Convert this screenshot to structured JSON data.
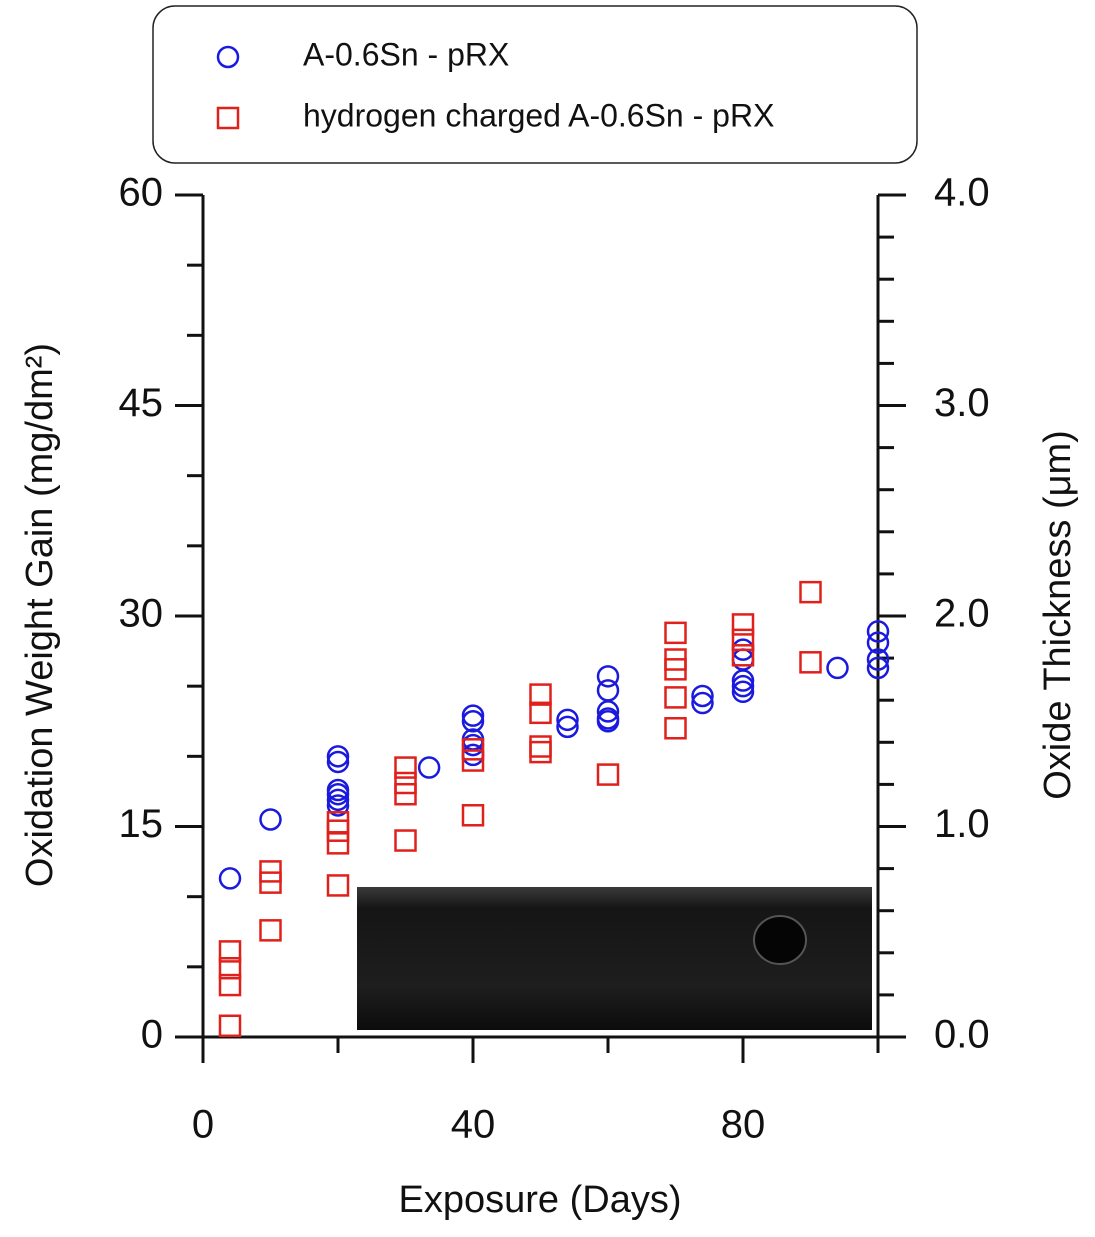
{
  "chart_data": {
    "type": "scatter",
    "x_label": "Exposure (Days)",
    "y_label": "Oxidation Weight Gain (mg/dm²)",
    "y2_label": "Oxide Thickness (μm)",
    "xlim": [
      0,
      100
    ],
    "xticks": [
      0,
      40,
      80
    ],
    "xminorticks": [
      20,
      60,
      100
    ],
    "ylim": [
      0,
      60
    ],
    "yticks": [
      0,
      15,
      30,
      45,
      60
    ],
    "yminorticks": [
      5,
      10,
      20,
      25,
      35,
      40,
      50,
      55
    ],
    "y2lim": [
      0,
      4
    ],
    "y2ticks": [
      {
        "value": 0,
        "label": "0.0"
      },
      {
        "value": 1,
        "label": "1.0"
      },
      {
        "value": 2,
        "label": "2.0"
      },
      {
        "value": 3,
        "label": "3.0"
      },
      {
        "value": 4,
        "label": "4.0"
      }
    ],
    "y2minorticks": [
      0.2,
      0.4,
      0.6,
      0.8,
      1.2,
      1.4,
      1.6,
      1.8,
      2.2,
      2.4,
      2.6,
      2.8,
      3.2,
      3.4,
      3.6,
      3.8
    ],
    "legend_position": "top",
    "series": [
      {
        "name": "A-0.6Sn - pRX",
        "color": "#1a1adf",
        "marker": "circle",
        "x": [
          4,
          10,
          20,
          20,
          20,
          20,
          20,
          20,
          33.5,
          40,
          40,
          40,
          40,
          40,
          54,
          54,
          60,
          60,
          60,
          60,
          60,
          74,
          74,
          80,
          80,
          80,
          80,
          80,
          94,
          100,
          100,
          100,
          100
        ],
        "values": [
          11.3,
          15.5,
          20.0,
          19.6,
          17.6,
          17.3,
          16.9,
          16.5,
          19.2,
          22.9,
          22.5,
          21.2,
          20.8,
          20.1,
          22.6,
          22.1,
          25.7,
          24.7,
          23.2,
          22.7,
          22.5,
          24.3,
          23.8,
          27.6,
          26.9,
          25.4,
          25.0,
          24.6,
          26.3,
          28.9,
          28.1,
          26.9,
          26.3
        ]
      },
      {
        "name": "hydrogen charged A-0.6Sn - pRX",
        "color": "#e0201b",
        "marker": "square",
        "x": [
          4,
          4,
          4,
          4,
          10,
          10,
          10,
          20,
          20,
          20,
          20,
          30,
          30,
          30,
          30,
          40,
          40,
          40,
          50,
          50,
          50,
          50,
          60,
          70,
          70,
          70,
          70,
          70,
          80,
          80,
          80,
          90,
          90
        ],
        "values": [
          6.1,
          4.9,
          3.7,
          0.8,
          11.8,
          11.0,
          7.6,
          15.3,
          14.7,
          13.8,
          10.8,
          19.2,
          18.1,
          17.3,
          14.0,
          20.5,
          19.7,
          15.8,
          24.4,
          23.1,
          20.7,
          20.3,
          18.7,
          28.8,
          26.9,
          26.2,
          24.2,
          22.0,
          29.4,
          28.3,
          27.2,
          31.7,
          26.7
        ]
      }
    ]
  }
}
